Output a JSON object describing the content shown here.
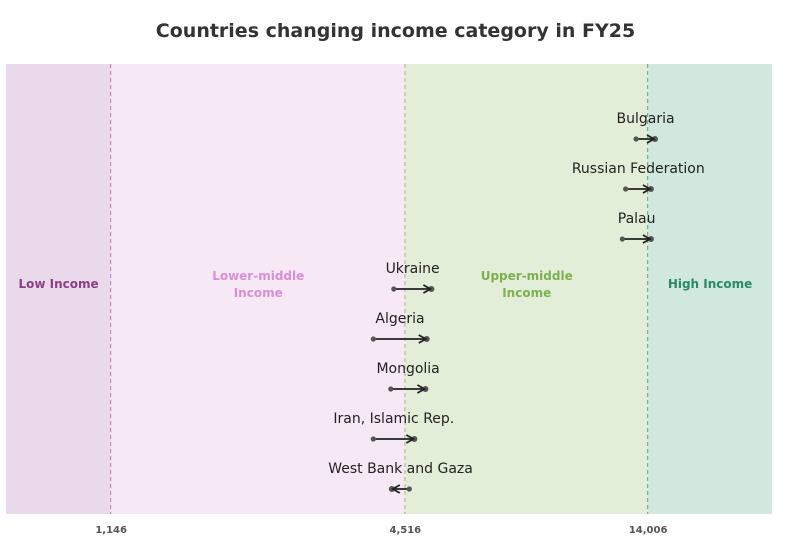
{
  "chart_data": {
    "type": "arrow-dot",
    "title": "Countries changing income category in FY25",
    "x_scale": "log",
    "xlim": [
      702,
      24950
    ],
    "x_ticks": [
      {
        "value": 1146,
        "label": "1,146"
      },
      {
        "value": 4516,
        "label": "4,516"
      },
      {
        "value": 14006,
        "label": "14,006"
      }
    ],
    "bands": [
      {
        "label": "Low Income",
        "from": 702,
        "to": 1146,
        "fill": "#ead9ea",
        "text_color": "#8c3f85",
        "line_color": "#a0609a"
      },
      {
        "label": "Lower-middle Income",
        "from": 1146,
        "to": 4516,
        "fill": "#f6e8f5",
        "text_color": "#d98fd4",
        "line_color": "#7fae5a"
      },
      {
        "label": "Upper-middle Income",
        "from": 4516,
        "to": 14006,
        "fill": "#e3eed9",
        "text_color": "#7fb050",
        "line_color": "#2e8b6a"
      },
      {
        "label": "High Income",
        "from": 14006,
        "to": 24950,
        "fill": "#d1e8de",
        "text_color": "#2a8a64"
      }
    ],
    "series": [
      {
        "country": "Bulgaria",
        "from": 13240,
        "to": 14460
      },
      {
        "country": "Russian Federation",
        "from": 12610,
        "to": 14190
      },
      {
        "country": "Palau",
        "from": 12420,
        "to": 14190
      },
      {
        "country": "Ukraine",
        "from": 4280,
        "to": 5100
      },
      {
        "country": "Algeria",
        "from": 3890,
        "to": 4990
      },
      {
        "country": "Mongolia",
        "from": 4220,
        "to": 4960
      },
      {
        "country": "Iran, Islamic Rep.",
        "from": 3890,
        "to": 4710
      },
      {
        "country": "West Bank and Gaza",
        "from": 4600,
        "to": 4240
      }
    ],
    "grid": false,
    "legend": "none"
  }
}
